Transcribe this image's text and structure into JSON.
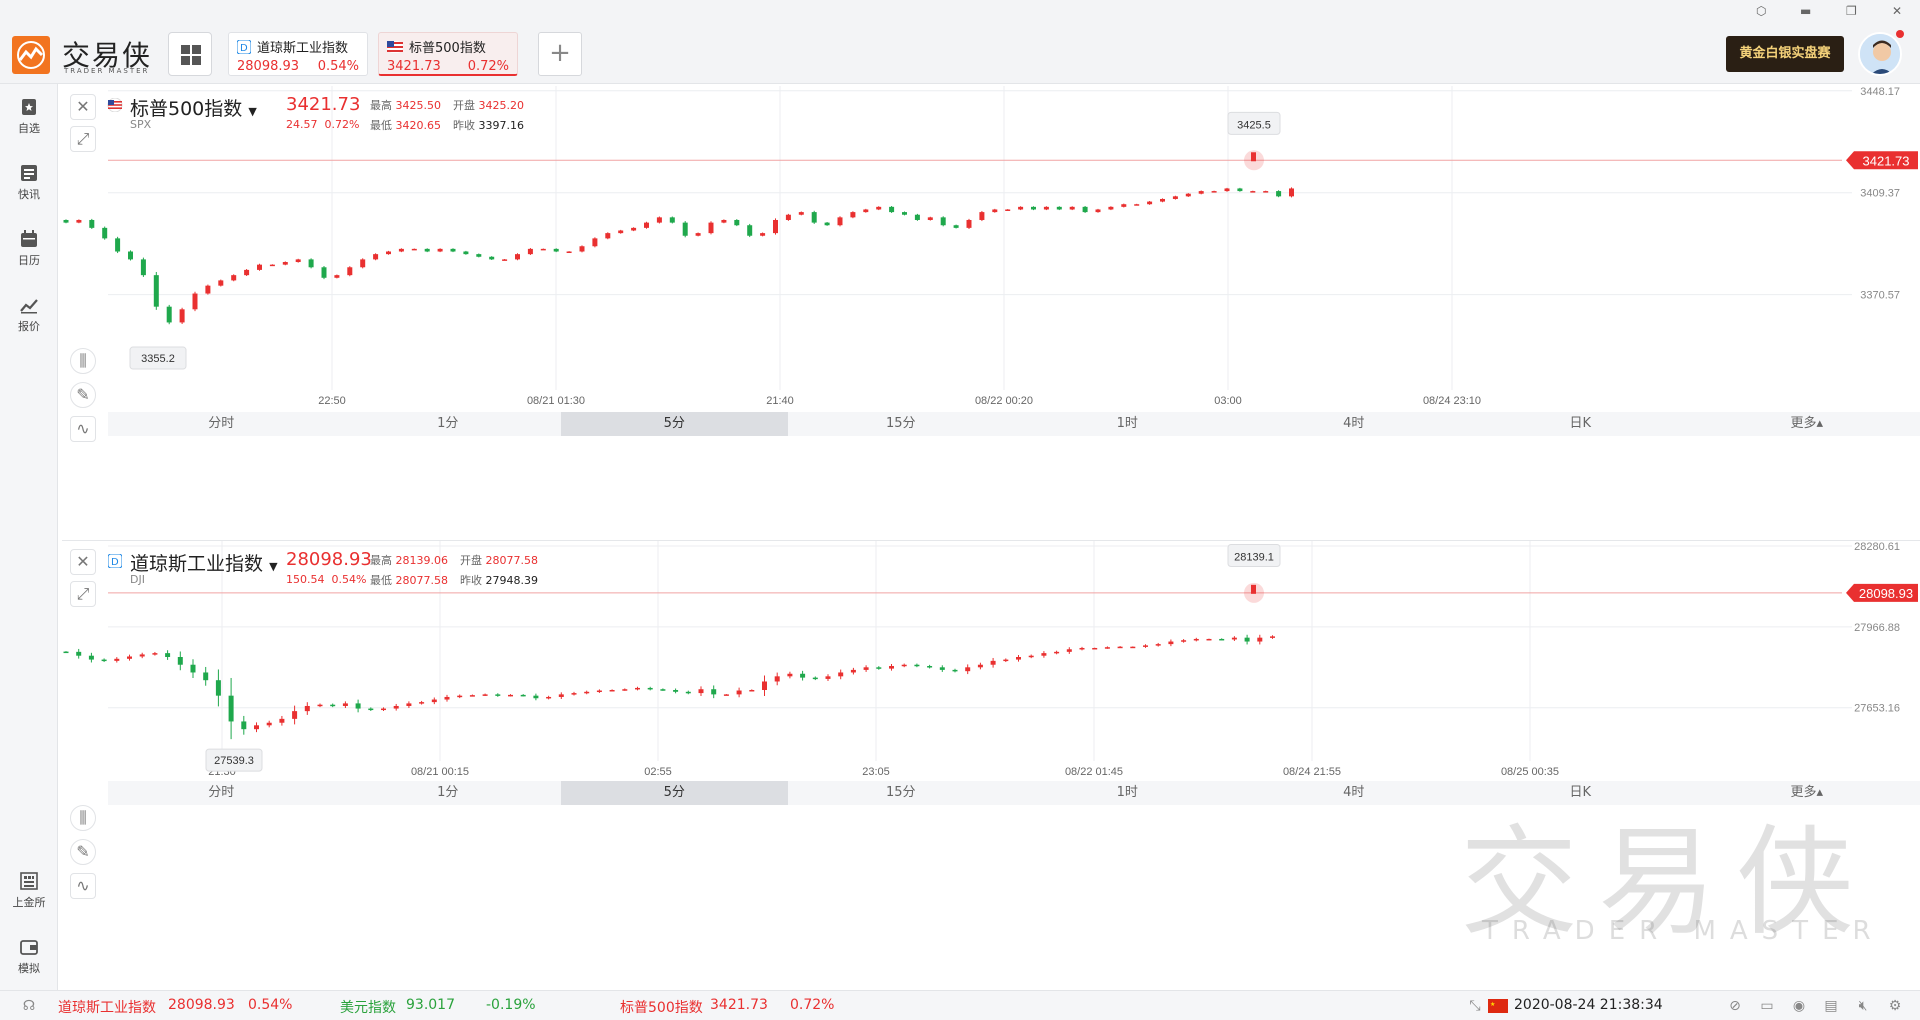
{
  "app": {
    "logo_text": "交易侠",
    "logo_sub": "TRADER MASTER",
    "promo": "黄金白银实盘赛",
    "win_controls": [
      "⬡",
      "▬",
      "❐",
      "✕"
    ]
  },
  "tabs": [
    {
      "name": "道琼斯工业指数",
      "price": "28098.93",
      "pct": "0.54%",
      "flag": "dow"
    },
    {
      "name": "标普500指数",
      "price": "3421.73",
      "pct": "0.72%",
      "flag": "us"
    }
  ],
  "sidebar": [
    {
      "label": "自选",
      "icon": "star-bookmark-icon"
    },
    {
      "label": "快讯",
      "icon": "news-icon"
    },
    {
      "label": "日历",
      "icon": "calendar-icon"
    },
    {
      "label": "报价",
      "icon": "trend-icon"
    },
    {
      "label": "上金所",
      "icon": "exchange-icon"
    },
    {
      "label": "模拟",
      "icon": "wallet-icon"
    }
  ],
  "panel1": {
    "name": "标普500指数",
    "symbol": "SPX",
    "price": "3421.73",
    "change": "24.57",
    "pct": "0.72%",
    "high_label": "最高",
    "high": "3425.50",
    "open_label": "开盘",
    "open": "3425.20",
    "low_label": "最低",
    "low": "3420.65",
    "prev_label": "昨收",
    "prev": "3397.16",
    "price_tag": "3421.73",
    "max_tip": "3425.5",
    "min_tip": "3355.2",
    "timeframes": [
      "分时",
      "1分",
      "5分",
      "15分",
      "1时",
      "4时",
      "日K",
      "更多▴"
    ],
    "active_tf": "5分"
  },
  "panel2": {
    "name": "道琼斯工业指数",
    "symbol": "DJI",
    "price": "28098.93",
    "change": "150.54",
    "pct": "0.54%",
    "high_label": "最高",
    "high": "28139.06",
    "open_label": "开盘",
    "open": "28077.58",
    "low_label": "最低",
    "low": "28077.58",
    "prev_label": "昨收",
    "prev": "27948.39",
    "price_tag": "28098.93",
    "max_tip": "28139.1",
    "min_tip": "27539.3",
    "timeframes": [
      "分时",
      "1分",
      "5分",
      "15分",
      "1时",
      "4时",
      "日K",
      "更多▴"
    ],
    "active_tf": "5分"
  },
  "bottombar": {
    "dow_name": "道琼斯工业指数",
    "dow_price": "28098.93",
    "dow_pct": "0.54%",
    "usd_name": "美元指数",
    "usd_price": "93.017",
    "usd_pct": "-0.19%",
    "spx_name": "标普500指数",
    "spx_price": "3421.73",
    "spx_pct": "0.72%",
    "clock": "2020-08-24 21:38:34"
  },
  "watermark": {
    "text": "交易侠",
    "sub": "TRADER MASTER"
  },
  "chart_data": [
    {
      "type": "candlestick",
      "title": "标普500指数 SPX 5分",
      "y_ticks": [
        "3448.17",
        "3409.37",
        "3370.57"
      ],
      "x_ticks": [
        "22:50",
        "08/21 01:30",
        "21:40",
        "08/22 00:20",
        "03:00",
        "08/24 23:10"
      ],
      "ylim": [
        3332,
        3450
      ],
      "last": 3421.73,
      "max": 3425.5,
      "min": 3355.2,
      "close_path": [
        3398,
        3399,
        3396,
        3392,
        3387,
        3384,
        3378,
        3366,
        3360,
        3365,
        3371,
        3374,
        3376,
        3378,
        3380,
        3382,
        3382,
        3383,
        3384,
        3381,
        3377,
        3378,
        3381,
        3384,
        3386,
        3387,
        3388,
        3388,
        3387,
        3388,
        3387,
        3386,
        3385,
        3384,
        3384,
        3386,
        3388,
        3388,
        3387,
        3387,
        3389,
        3392,
        3394,
        3395,
        3396,
        3398,
        3400,
        3398,
        3393,
        3394,
        3398,
        3399,
        3397,
        3393,
        3394,
        3399,
        3401,
        3402,
        3398,
        3397,
        3400,
        3402,
        3403,
        3404,
        3402,
        3401,
        3399,
        3400,
        3397,
        3396,
        3399,
        3402,
        3403,
        3403,
        3404,
        3403,
        3404,
        3403,
        3404,
        3402,
        3403,
        3404,
        3405,
        3405,
        3406,
        3407,
        3408,
        3409,
        3410,
        3410,
        3411,
        3410,
        3410,
        3410,
        3408,
        3411
      ]
    },
    {
      "type": "candlestick",
      "title": "道琼斯工业指数 DJI 5分",
      "y_ticks": [
        "28280.61",
        "27966.88",
        "27653.16"
      ],
      "x_ticks": [
        "21:30",
        "08/21 00:15",
        "02:55",
        "23:05",
        "08/22 01:45",
        "08/24 21:55",
        "08/25 00:35"
      ],
      "ylim": [
        27400,
        28300
      ],
      "last": 28098.93,
      "max": 28139.1,
      "min": 27539.3,
      "close_path": [
        27870,
        27855,
        27840,
        27835,
        27843,
        27852,
        27860,
        27865,
        27850,
        27820,
        27790,
        27760,
        27700,
        27600,
        27570,
        27585,
        27595,
        27610,
        27640,
        27660,
        27665,
        27660,
        27670,
        27650,
        27645,
        27650,
        27660,
        27670,
        27675,
        27685,
        27695,
        27700,
        27702,
        27705,
        27700,
        27703,
        27700,
        27690,
        27695,
        27705,
        27710,
        27715,
        27720,
        27722,
        27725,
        27730,
        27725,
        27722,
        27715,
        27710,
        27725,
        27705,
        27705,
        27720,
        27722,
        27755,
        27775,
        27785,
        27770,
        27765,
        27775,
        27790,
        27800,
        27810,
        27805,
        27815,
        27820,
        27815,
        27810,
        27800,
        27795,
        27810,
        27820,
        27835,
        27840,
        27850,
        27855,
        27865,
        27870,
        27880,
        27885,
        27885,
        27888,
        27890,
        27890,
        27895,
        27900,
        27910,
        27915,
        27920,
        27920,
        27918,
        27925,
        27910,
        27925,
        27930
      ]
    }
  ]
}
